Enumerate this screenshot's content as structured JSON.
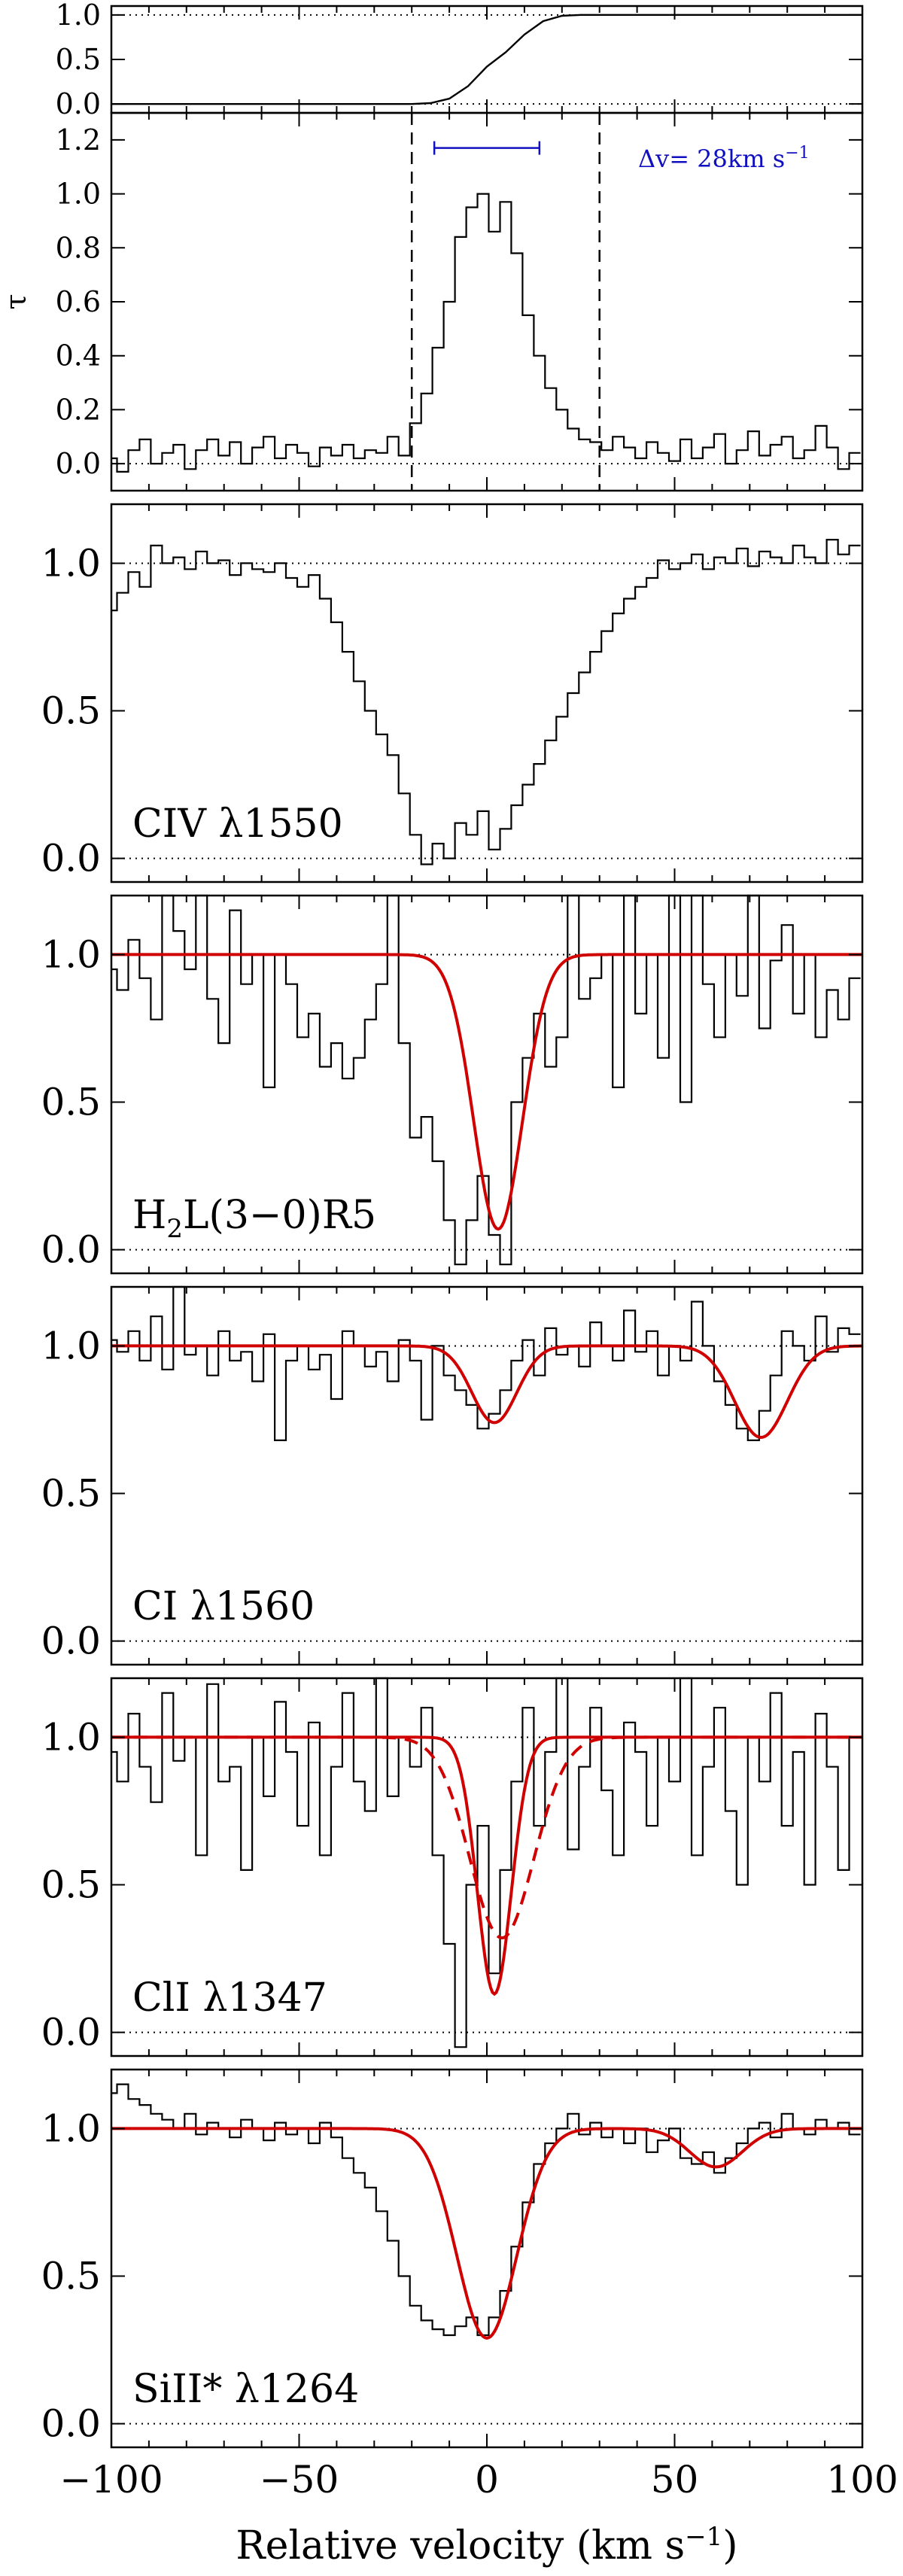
{
  "chart_data": [
    {
      "type": "line",
      "panel": "cumulative",
      "ylim": [
        -0.1,
        1.1
      ],
      "yticks": [
        "0.0",
        "0.5",
        "1.0"
      ],
      "xlim": [
        -100,
        100
      ],
      "reference_lines": [
        0,
        1
      ],
      "series": [
        {
          "x": [
            -100,
            -20,
            -15,
            -10,
            -5,
            0,
            5,
            10,
            15,
            20,
            25,
            30,
            100
          ],
          "y": [
            0,
            0,
            0.01,
            0.06,
            0.2,
            0.42,
            0.58,
            0.78,
            0.93,
            0.99,
            1.0,
            1.0,
            1.0
          ]
        }
      ]
    },
    {
      "type": "line",
      "panel": "optical-depth",
      "ylabel": "τ",
      "ylim": [
        -0.1,
        1.3
      ],
      "yticks": [
        "0.0",
        "0.2",
        "0.4",
        "0.6",
        "0.8",
        "1.0",
        "1.2"
      ],
      "xlim": [
        -100,
        100
      ],
      "reference_lines": [
        0
      ],
      "vlines": [
        -20,
        30
      ],
      "bracket": {
        "x0": -14,
        "x1": 14,
        "y": 1.17
      },
      "annotation": "Δv= 28km s",
      "annotation_sup": "−1",
      "series": [
        {
          "step": true,
          "x": [
            -100,
            -97,
            -94,
            -91,
            -88,
            -85,
            -82,
            -79,
            -76,
            -73,
            -70,
            -67,
            -64,
            -61,
            -58,
            -55,
            -52,
            -49,
            -46,
            -43,
            -40,
            -37,
            -34,
            -31,
            -28,
            -25,
            -22,
            -19,
            -16,
            -13,
            -10,
            -7,
            -4,
            -1,
            2,
            5,
            8,
            11,
            14,
            17,
            20,
            23,
            26,
            29,
            32,
            35,
            38,
            41,
            44,
            47,
            50,
            53,
            56,
            59,
            62,
            65,
            68,
            71,
            74,
            77,
            80,
            83,
            86,
            89,
            92,
            95,
            98
          ],
          "y": [
            0.02,
            -0.03,
            0.05,
            0.09,
            0.0,
            0.04,
            0.07,
            -0.02,
            0.05,
            0.09,
            0.03,
            0.08,
            0.0,
            0.06,
            0.1,
            0.02,
            0.07,
            0.04,
            -0.01,
            0.06,
            0.03,
            0.07,
            0.02,
            0.05,
            0.04,
            0.1,
            0.03,
            0.15,
            0.26,
            0.43,
            0.6,
            0.84,
            0.95,
            1.0,
            0.86,
            0.97,
            0.78,
            0.55,
            0.4,
            0.28,
            0.2,
            0.13,
            0.09,
            0.08,
            0.05,
            0.1,
            0.06,
            0.02,
            0.08,
            0.04,
            0.01,
            0.09,
            0.02,
            0.06,
            0.11,
            0.0,
            0.05,
            0.12,
            0.03,
            0.07,
            0.1,
            0.02,
            0.05,
            0.14,
            0.06,
            -0.02,
            0.04
          ]
        }
      ]
    },
    {
      "type": "line",
      "panel": "CIV",
      "label": "CIV λ1550",
      "ylim": [
        -0.08,
        1.2
      ],
      "yticks": [
        "0.0",
        "0.5",
        "1.0"
      ],
      "xlim": [
        -100,
        100
      ],
      "reference_lines": [
        0,
        1
      ],
      "series": [
        {
          "step": true,
          "x": [
            -100,
            -97,
            -94,
            -91,
            -88,
            -85,
            -82,
            -79,
            -76,
            -73,
            -70,
            -67,
            -64,
            -61,
            -58,
            -55,
            -52,
            -49,
            -46,
            -43,
            -40,
            -37,
            -34,
            -31,
            -28,
            -25,
            -22,
            -19,
            -16,
            -13,
            -10,
            -7,
            -4,
            -1,
            2,
            5,
            8,
            11,
            14,
            17,
            20,
            23,
            26,
            29,
            32,
            35,
            38,
            41,
            44,
            47,
            50,
            53,
            56,
            59,
            62,
            65,
            68,
            71,
            74,
            77,
            80,
            83,
            86,
            89,
            92,
            95,
            98
          ],
          "y": [
            0.84,
            0.9,
            0.97,
            0.92,
            1.06,
            1.0,
            1.02,
            0.98,
            1.04,
            1.0,
            1.01,
            0.96,
            1.0,
            0.98,
            0.97,
            1.0,
            0.95,
            0.92,
            0.96,
            0.88,
            0.8,
            0.7,
            0.6,
            0.5,
            0.42,
            0.35,
            0.22,
            0.08,
            -0.02,
            0.05,
            0.0,
            0.12,
            0.08,
            0.16,
            0.03,
            0.1,
            0.18,
            0.25,
            0.32,
            0.4,
            0.48,
            0.56,
            0.63,
            0.7,
            0.77,
            0.83,
            0.88,
            0.92,
            0.95,
            1.01,
            0.98,
            1.0,
            1.03,
            0.98,
            1.02,
            1.0,
            1.05,
            0.99,
            1.04,
            1.02,
            1.0,
            1.06,
            1.02,
            1.0,
            1.08,
            1.03,
            1.06
          ]
        }
      ]
    },
    {
      "type": "line",
      "panel": "H2",
      "label": "H",
      "label_sub": "2",
      "label_tail": "L(3−0)R5",
      "ylim": [
        -0.08,
        1.2
      ],
      "yticks": [
        "0.0",
        "0.5",
        "1.0"
      ],
      "xlim": [
        -100,
        100
      ],
      "reference_lines": [
        0,
        1
      ],
      "series": [
        {
          "step": true,
          "x": [
            -100,
            -97,
            -94,
            -91,
            -88,
            -85,
            -82,
            -79,
            -76,
            -73,
            -70,
            -67,
            -64,
            -61,
            -58,
            -55,
            -52,
            -49,
            -46,
            -43,
            -40,
            -37,
            -34,
            -31,
            -28,
            -25,
            -22,
            -19,
            -16,
            -13,
            -10,
            -7,
            -4,
            -1,
            2,
            5,
            8,
            11,
            14,
            17,
            20,
            23,
            26,
            29,
            32,
            35,
            38,
            41,
            44,
            47,
            50,
            53,
            56,
            59,
            62,
            65,
            68,
            71,
            74,
            77,
            80,
            83,
            86,
            89,
            92,
            95,
            98
          ],
          "y": [
            0.95,
            0.88,
            1.05,
            0.92,
            0.78,
            1.2,
            1.08,
            0.95,
            1.2,
            0.85,
            0.7,
            1.15,
            0.9,
            1.0,
            0.55,
            1.0,
            0.9,
            0.72,
            0.8,
            0.62,
            0.7,
            0.58,
            0.65,
            0.78,
            0.9,
            1.2,
            0.7,
            0.38,
            0.45,
            0.3,
            0.1,
            -0.05,
            0.1,
            0.25,
            0.05,
            -0.05,
            0.5,
            0.65,
            0.8,
            0.62,
            0.72,
            1.2,
            0.85,
            0.92,
            1.0,
            0.55,
            1.2,
            0.8,
            1.0,
            0.65,
            1.2,
            0.5,
            1.2,
            0.9,
            0.72,
            1.0,
            0.86,
            1.2,
            0.75,
            0.98,
            1.1,
            0.8,
            1.0,
            0.72,
            0.88,
            0.78,
            0.92
          ]
        },
        {
          "fit": true,
          "color": "#d00000",
          "gaussian": [
            {
              "center": 3,
              "depth": 0.93,
              "sigma": 6.5
            }
          ]
        }
      ]
    },
    {
      "type": "line",
      "panel": "CI",
      "label": "CI λ1560",
      "ylim": [
        -0.08,
        1.2
      ],
      "yticks": [
        "0.0",
        "0.5",
        "1.0"
      ],
      "xlim": [
        -100,
        100
      ],
      "reference_lines": [
        0,
        1
      ],
      "series": [
        {
          "step": true,
          "x": [
            -100,
            -97,
            -94,
            -91,
            -88,
            -85,
            -82,
            -79,
            -76,
            -73,
            -70,
            -67,
            -64,
            -61,
            -58,
            -55,
            -52,
            -49,
            -46,
            -43,
            -40,
            -37,
            -34,
            -31,
            -28,
            -25,
            -22,
            -19,
            -16,
            -13,
            -10,
            -7,
            -4,
            -1,
            2,
            5,
            8,
            11,
            14,
            17,
            20,
            23,
            26,
            29,
            32,
            35,
            38,
            41,
            44,
            47,
            50,
            53,
            56,
            59,
            62,
            65,
            68,
            71,
            74,
            77,
            80,
            83,
            86,
            89,
            92,
            95,
            98
          ],
          "y": [
            1.02,
            0.98,
            1.05,
            0.95,
            1.1,
            0.92,
            1.2,
            0.97,
            1.0,
            0.9,
            1.05,
            0.95,
            0.98,
            0.88,
            1.04,
            0.68,
            0.95,
            1.0,
            0.92,
            0.97,
            0.82,
            1.05,
            1.0,
            0.93,
            0.98,
            0.88,
            1.02,
            0.95,
            0.75,
            1.0,
            0.9,
            0.85,
            0.8,
            0.72,
            0.77,
            0.85,
            0.95,
            1.02,
            0.9,
            1.06,
            0.97,
            1.0,
            0.93,
            1.08,
            1.0,
            0.95,
            1.12,
            0.98,
            1.05,
            0.9,
            1.0,
            0.95,
            1.15,
            1.0,
            0.88,
            0.8,
            0.72,
            0.68,
            0.78,
            0.9,
            1.05,
            1.0,
            0.95,
            1.1,
            0.98,
            1.06,
            1.04
          ]
        },
        {
          "fit": true,
          "color": "#d00000",
          "gaussian": [
            {
              "center": 2,
              "depth": 0.26,
              "sigma": 6
            },
            {
              "center": 73,
              "depth": 0.31,
              "sigma": 7
            }
          ]
        }
      ]
    },
    {
      "type": "line",
      "panel": "ClI",
      "label": "ClI λ1347",
      "ylim": [
        -0.08,
        1.2
      ],
      "yticks": [
        "0.0",
        "0.5",
        "1.0"
      ],
      "xlim": [
        -100,
        100
      ],
      "reference_lines": [
        0,
        1
      ],
      "series": [
        {
          "step": true,
          "x": [
            -100,
            -97,
            -94,
            -91,
            -88,
            -85,
            -82,
            -79,
            -76,
            -73,
            -70,
            -67,
            -64,
            -61,
            -58,
            -55,
            -52,
            -49,
            -46,
            -43,
            -40,
            -37,
            -34,
            -31,
            -28,
            -25,
            -22,
            -19,
            -16,
            -13,
            -10,
            -7,
            -4,
            -1,
            2,
            5,
            8,
            11,
            14,
            17,
            20,
            23,
            26,
            29,
            32,
            35,
            38,
            41,
            44,
            47,
            50,
            53,
            56,
            59,
            62,
            65,
            68,
            71,
            74,
            77,
            80,
            83,
            86,
            89,
            92,
            95,
            98
          ],
          "y": [
            0.95,
            0.85,
            1.08,
            0.9,
            0.78,
            1.15,
            0.92,
            1.0,
            0.6,
            1.18,
            0.85,
            0.9,
            0.55,
            1.0,
            0.8,
            1.12,
            0.95,
            0.7,
            1.05,
            0.6,
            0.9,
            1.15,
            0.85,
            0.75,
            1.2,
            0.8,
            1.0,
            0.9,
            1.1,
            0.6,
            0.3,
            -0.05,
            0.5,
            0.7,
            0.2,
            0.55,
            0.85,
            1.1,
            0.7,
            0.95,
            1.2,
            0.62,
            0.9,
            1.1,
            0.82,
            0.6,
            1.05,
            0.95,
            0.7,
            1.0,
            0.85,
            1.2,
            0.6,
            0.9,
            1.1,
            0.75,
            0.5,
            1.0,
            0.85,
            1.15,
            0.7,
            0.95,
            0.5,
            1.08,
            0.9,
            0.55,
            1.0
          ]
        },
        {
          "fit": true,
          "color": "#d00000",
          "gaussian": [
            {
              "center": 2,
              "depth": 0.87,
              "sigma": 4.5
            }
          ]
        },
        {
          "fit": true,
          "dashed": true,
          "color": "#d00000",
          "gaussian": [
            {
              "center": 4,
              "depth": 0.68,
              "sigma": 8.5
            }
          ]
        }
      ]
    },
    {
      "type": "line",
      "panel": "SiII*",
      "label": "SiII* λ1264",
      "ylim": [
        -0.08,
        1.2
      ],
      "yticks": [
        "0.0",
        "0.5",
        "1.0"
      ],
      "xlim": [
        -100,
        100
      ],
      "xticks": [
        "−100",
        "−50",
        "0",
        "50",
        "100"
      ],
      "xlabel": "Relative velocity (km s",
      "xlabel_sup": "−1",
      "xlabel_tail": ")",
      "reference_lines": [
        0,
        1
      ],
      "series": [
        {
          "step": true,
          "x": [
            -100,
            -97,
            -94,
            -91,
            -88,
            -85,
            -82,
            -79,
            -76,
            -73,
            -70,
            -67,
            -64,
            -61,
            -58,
            -55,
            -52,
            -49,
            -46,
            -43,
            -40,
            -37,
            -34,
            -31,
            -28,
            -25,
            -22,
            -19,
            -16,
            -13,
            -10,
            -7,
            -4,
            -1,
            2,
            5,
            8,
            11,
            14,
            17,
            20,
            23,
            26,
            29,
            32,
            35,
            38,
            41,
            44,
            47,
            50,
            53,
            56,
            59,
            62,
            65,
            68,
            71,
            74,
            77,
            80,
            83,
            86,
            89,
            92,
            95,
            98
          ],
          "y": [
            1.12,
            1.15,
            1.1,
            1.08,
            1.05,
            1.03,
            1.0,
            1.05,
            0.98,
            1.02,
            1.0,
            0.97,
            1.03,
            1.0,
            0.96,
            1.02,
            0.98,
            1.0,
            0.95,
            1.02,
            0.97,
            0.9,
            0.85,
            0.8,
            0.72,
            0.62,
            0.5,
            0.4,
            0.35,
            0.32,
            0.3,
            0.33,
            0.36,
            0.3,
            0.36,
            0.45,
            0.6,
            0.75,
            0.88,
            0.95,
            1.0,
            1.05,
            0.98,
            1.02,
            0.97,
            1.0,
            0.95,
            1.0,
            0.92,
            0.96,
            1.0,
            0.9,
            0.88,
            0.92,
            0.85,
            0.9,
            0.95,
            1.0,
            1.02,
            0.97,
            1.05,
            1.0,
            0.98,
            1.03,
            1.0,
            1.02,
            0.98
          ]
        },
        {
          "fit": true,
          "color": "#d00000",
          "gaussian": [
            {
              "center": 0,
              "depth": 0.71,
              "sigma": 8
            },
            {
              "center": 61,
              "depth": 0.13,
              "sigma": 7
            }
          ]
        }
      ]
    }
  ]
}
